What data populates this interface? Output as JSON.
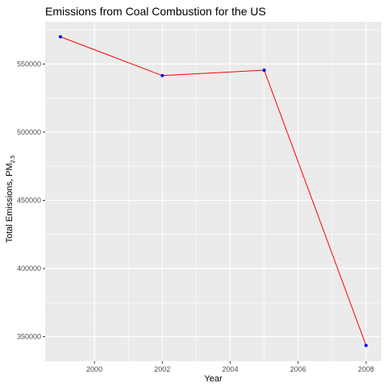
{
  "chart_data": {
    "type": "line",
    "title": "Emissions from Coal Combustion for the US",
    "xlabel": "Year",
    "ylabel_main": "Total Emissions, PM",
    "ylabel_subscript": "2.5",
    "x": [
      1999,
      2002,
      2005,
      2008
    ],
    "y": [
      570000,
      541500,
      545500,
      343500
    ],
    "xlim": [
      1998.55,
      2008.45
    ],
    "ylim": [
      332000,
      581000
    ],
    "xticks": [
      2000,
      2002,
      2004,
      2006,
      2008
    ],
    "yticks": [
      350000,
      400000,
      450000,
      500000,
      550000
    ],
    "grid": true,
    "colors": {
      "line": "#ff0000",
      "point": "#0000ff",
      "panel": "#ebebeb",
      "grid": "#ffffff"
    }
  }
}
